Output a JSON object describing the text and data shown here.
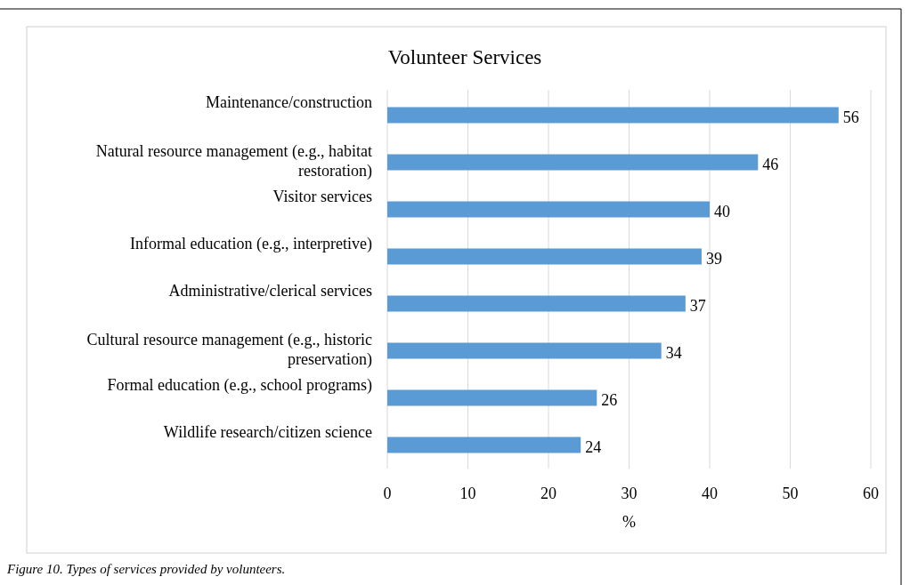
{
  "chart_data": {
    "type": "bar",
    "orientation": "horizontal",
    "title": "Volunteer Services",
    "xlabel": "%",
    "categories": [
      "Maintenance/construction",
      "Natural resource management (e.g., habitat restoration)",
      "Visitor services",
      "Informal education (e.g., interpretive)",
      "Administrative/clerical services",
      "Cultural resource management (e.g., historic preservation)",
      "Formal education (e.g., school programs)",
      "Wildlife research/citizen science"
    ],
    "values": [
      56,
      46,
      40,
      39,
      37,
      34,
      26,
      24
    ],
    "color": "#5b9bd5",
    "xlim": [
      0,
      60
    ],
    "xticks": [
      0,
      10,
      20,
      30,
      40,
      50,
      60
    ],
    "grid": "x",
    "data_labels": true,
    "annotations": [
      "Figure 10. Types of services provided by volunteers."
    ]
  }
}
